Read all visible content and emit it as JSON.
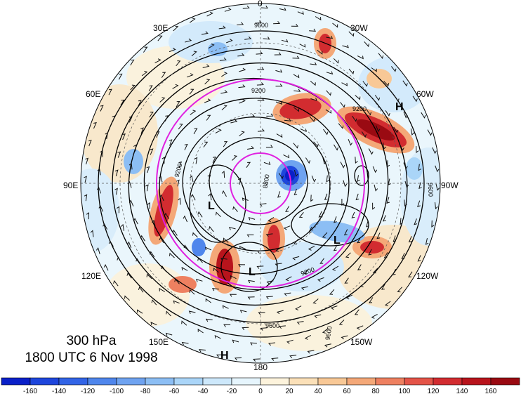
{
  "title": {
    "level": "300 hPa",
    "datetime": "1800 UTC 6 Nov 1998"
  },
  "longitude_labels": [
    {
      "id": "lon-0",
      "text": "0"
    },
    {
      "id": "lon-30w",
      "text": "30W"
    },
    {
      "id": "lon-60w",
      "text": "60W"
    },
    {
      "id": "lon-90w",
      "text": "90W"
    },
    {
      "id": "lon-120w",
      "text": "120W"
    },
    {
      "id": "lon-150w",
      "text": "150W"
    },
    {
      "id": "lon-180",
      "text": "180"
    },
    {
      "id": "lon-150e",
      "text": "150E"
    },
    {
      "id": "lon-120e",
      "text": "120E"
    },
    {
      "id": "lon-90e",
      "text": "90E"
    },
    {
      "id": "lon-60e",
      "text": "60E"
    },
    {
      "id": "lon-30e",
      "text": "30E"
    }
  ],
  "pressure_centers": [
    {
      "id": "high-north-america",
      "text": "H"
    },
    {
      "id": "high-north-pacific",
      "text": "H"
    },
    {
      "id": "low-siberia",
      "text": "L"
    },
    {
      "id": "low-bering",
      "text": "L"
    },
    {
      "id": "low-alaska",
      "text": "L"
    }
  ],
  "contour_labels": [
    "9600",
    "9200",
    "8800",
    "9200",
    "9600",
    "9200",
    "9600",
    "9200",
    "9600"
  ],
  "colorbar": {
    "ticks": [
      "-160",
      "-140",
      "-120",
      "-100",
      "-80",
      "-60",
      "-40",
      "-20",
      "0",
      "20",
      "40",
      "60",
      "80",
      "100",
      "120",
      "140",
      "160"
    ],
    "colors": [
      "#0a20c8",
      "#1e46dc",
      "#3264e6",
      "#4f86ec",
      "#6fa3f0",
      "#8cbef4",
      "#aad5f8",
      "#cde8fb",
      "#e6f5fd",
      "#fdf3dc",
      "#fbe0b8",
      "#f8c896",
      "#f4a878",
      "#ee8060",
      "#e45448",
      "#d22c30",
      "#b8141c",
      "#9a0a12"
    ]
  }
}
